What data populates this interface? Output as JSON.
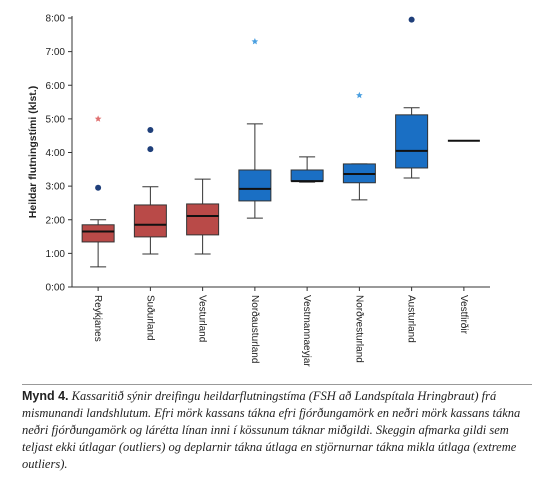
{
  "chart_data": {
    "type": "box",
    "y_label": "Heildar flutningstími (klst.)",
    "categories": [
      "Reykjanes",
      "Suðurland",
      "Vesturland",
      "Norðausturland",
      "Vestmannaeyjar",
      "Norðvesturland",
      "Austurland",
      "Vestfirðir"
    ],
    "colors": [
      "#b94a48",
      "#b94a48",
      "#b94a48",
      "#1a6fc4",
      "#1a6fc4",
      "#1a6fc4",
      "#1a6fc4",
      "#1a6fc4"
    ],
    "boxes": [
      {
        "min": 0.6,
        "q1": 1.34,
        "median": 1.65,
        "q3": 1.85,
        "max": 2.0,
        "outliers": [
          2.95
        ],
        "extremes": [
          5.0
        ]
      },
      {
        "min": 0.98,
        "q1": 1.49,
        "median": 1.85,
        "q3": 2.44,
        "max": 2.98,
        "outliers": [
          4.67,
          4.1
        ],
        "extremes": []
      },
      {
        "min": 0.98,
        "q1": 1.55,
        "median": 2.11,
        "q3": 2.47,
        "max": 3.21,
        "outliers": [],
        "extremes": []
      },
      {
        "min": 2.05,
        "q1": 2.56,
        "median": 2.92,
        "q3": 3.48,
        "max": 4.85,
        "outliers": [],
        "extremes": [
          7.3
        ]
      },
      {
        "min": 3.12,
        "q1": 3.15,
        "median": 3.15,
        "q3": 3.48,
        "max": 3.87,
        "outliers": [],
        "extremes": []
      },
      {
        "min": 2.59,
        "q1": 3.1,
        "median": 3.36,
        "q3": 3.66,
        "max": 3.66,
        "outliers": [],
        "extremes": [
          5.7
        ]
      },
      {
        "min": 3.24,
        "q1": 3.54,
        "median": 4.05,
        "q3": 5.12,
        "max": 5.33,
        "outliers": [
          7.95
        ],
        "extremes": []
      },
      {
        "median": 4.35,
        "outliers": [],
        "extremes": []
      }
    ],
    "outlier_color": "#1f3f7a",
    "extreme_colors": [
      "#e07070",
      "#e07070",
      "#e07070",
      "#4a9fe0",
      "#4a9fe0",
      "#4a9fe0",
      "#4a9fe0",
      "#4a9fe0"
    ],
    "ylim": [
      0,
      8
    ],
    "yticks": [
      {
        "value": 0,
        "label": "0:00"
      },
      {
        "value": 1,
        "label": "1:00"
      },
      {
        "value": 2,
        "label": "2:00"
      },
      {
        "value": 3,
        "label": "3:00"
      },
      {
        "value": 4,
        "label": "4:00"
      },
      {
        "value": 5,
        "label": "5:00"
      },
      {
        "value": 6,
        "label": "6:00"
      },
      {
        "value": 7,
        "label": "7:00"
      },
      {
        "value": 8,
        "label": "8:00"
      }
    ]
  },
  "caption": {
    "label": "Mynd 4.",
    "text": "Kassaritið sýnir dreifingu heildarflutningstíma (FSH að Landspítala Hringbraut) frá mismunandi landshlutum. Efri mörk kassans tákna efri fjórðungamörk en neðri mörk kassans tákna neðri fjórðungamörk og lárétta línan inni í kössunum táknar miðgildi. Skeggin afmarka gildi sem teljast ekki útlagar (outliers) og deplarnir tákna útlaga en stjörnurnar tákna mikla útlaga (extreme outliers)."
  }
}
